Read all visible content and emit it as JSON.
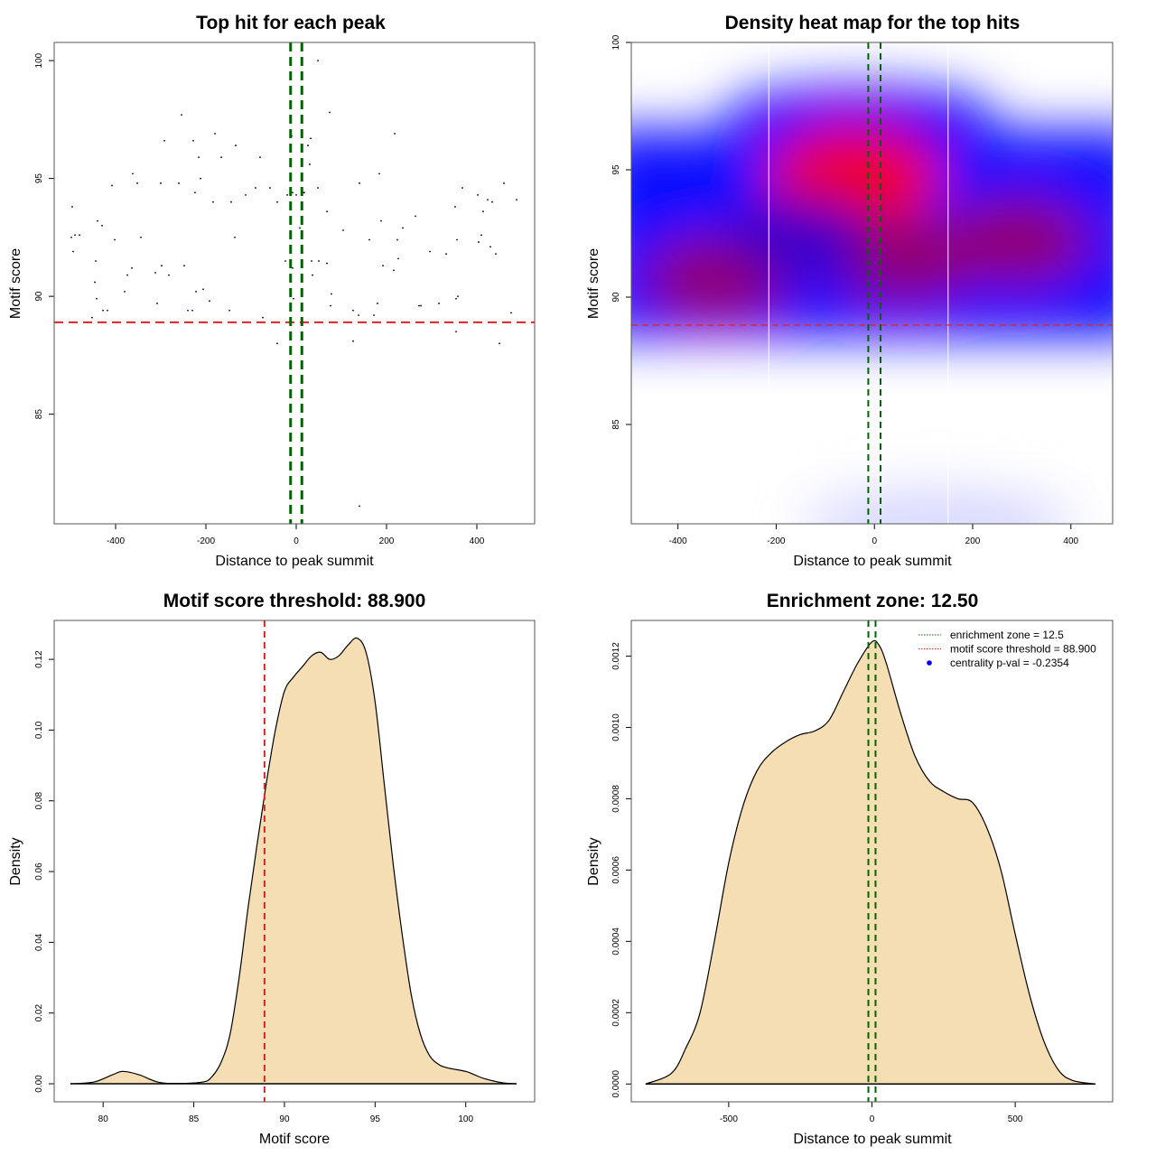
{
  "chart_data": [
    {
      "id": "scatter",
      "type": "scatter",
      "title": "Top hit for each peak",
      "xlabel": "Distance to peak summit",
      "ylabel": "Motif score",
      "xlim": [
        -536,
        528
      ],
      "ylim": [
        80.35,
        100.77
      ],
      "xticks": [
        -400,
        -200,
        0,
        200,
        400
      ],
      "yticks": [
        85,
        90,
        95,
        100
      ],
      "xtick_labels": [
        "-400",
        "-200",
        "0",
        "200",
        "400"
      ],
      "ytick_labels": [
        "85",
        "90",
        "95",
        "100"
      ],
      "hlines": [
        {
          "y": 88.9,
          "color": "#dd2222",
          "style": "dashed",
          "label": "motif score threshold"
        }
      ],
      "vlines": [
        {
          "x": -12.5,
          "color": "#006400",
          "style": "dashed"
        },
        {
          "x": 12.5,
          "color": "#006400",
          "style": "dashed"
        }
      ],
      "points": [
        [
          -496,
          93.8
        ],
        [
          -498,
          92.5
        ],
        [
          -490,
          92.6
        ],
        [
          -480,
          92.6
        ],
        [
          -494,
          91.9
        ],
        [
          -452,
          89.1
        ],
        [
          -446,
          90.6
        ],
        [
          -444,
          91.5
        ],
        [
          -442,
          89.9
        ],
        [
          -440,
          93.2
        ],
        [
          -430,
          93.0
        ],
        [
          -428,
          89.4
        ],
        [
          -418,
          89.4
        ],
        [
          -408,
          94.7
        ],
        [
          -402,
          92.4
        ],
        [
          -380,
          90.2
        ],
        [
          -374,
          90.9
        ],
        [
          -364,
          91.2
        ],
        [
          -362,
          95.2
        ],
        [
          -352,
          94.8
        ],
        [
          -344,
          92.5
        ],
        [
          -312,
          91.0
        ],
        [
          -308,
          89.7
        ],
        [
          -300,
          94.8
        ],
        [
          -298,
          91.3
        ],
        [
          -292,
          96.6
        ],
        [
          -282,
          90.9
        ],
        [
          -260,
          94.8
        ],
        [
          -254,
          97.7
        ],
        [
          -248,
          91.3
        ],
        [
          -240,
          89.4
        ],
        [
          -230,
          89.4
        ],
        [
          -228,
          96.6
        ],
        [
          -224,
          94.4
        ],
        [
          -222,
          90.2
        ],
        [
          -212,
          95.0
        ],
        [
          -216,
          95.9
        ],
        [
          -206,
          90.3
        ],
        [
          -192,
          89.8
        ],
        [
          -184,
          94.0
        ],
        [
          -180,
          96.9
        ],
        [
          -166,
          95.9
        ],
        [
          -144,
          94.0
        ],
        [
          -136,
          92.5
        ],
        [
          -148,
          89.4
        ],
        [
          -134,
          96.4
        ],
        [
          -112,
          94.3
        ],
        [
          -90,
          94.6
        ],
        [
          -80,
          95.9
        ],
        [
          -74,
          89.1
        ],
        [
          -58,
          94.6
        ],
        [
          -42,
          88.0
        ],
        [
          -42,
          94.0
        ],
        [
          -24,
          91.5
        ],
        [
          -20,
          94.3
        ],
        [
          -12,
          95.5
        ],
        [
          -10,
          96.8
        ],
        [
          -8,
          94.4
        ],
        [
          -8,
          91.2
        ],
        [
          -6,
          89.9
        ],
        [
          0,
          94.3
        ],
        [
          8,
          92.9
        ],
        [
          16,
          94.4
        ],
        [
          18,
          94.4
        ],
        [
          26,
          96.4
        ],
        [
          30,
          95.6
        ],
        [
          32,
          96.7
        ],
        [
          34,
          91.5
        ],
        [
          36,
          90.9
        ],
        [
          48,
          94.6
        ],
        [
          48,
          100.0
        ],
        [
          50,
          91.5
        ],
        [
          68,
          93.6
        ],
        [
          68,
          91.4
        ],
        [
          74,
          97.8
        ],
        [
          78,
          90.1
        ],
        [
          76,
          89.6
        ],
        [
          104,
          92.8
        ],
        [
          126,
          88.1
        ],
        [
          126,
          89.4
        ],
        [
          140,
          94.8
        ],
        [
          140,
          81.1
        ],
        [
          138,
          89.2
        ],
        [
          162,
          92.4
        ],
        [
          172,
          89.2
        ],
        [
          180,
          89.7
        ],
        [
          184,
          95.2
        ],
        [
          188,
          93.2
        ],
        [
          192,
          91.3
        ],
        [
          216,
          91.1
        ],
        [
          218,
          96.9
        ],
        [
          224,
          92.4
        ],
        [
          226,
          91.6
        ],
        [
          236,
          92.9
        ],
        [
          264,
          93.4
        ],
        [
          272,
          89.6
        ],
        [
          276,
          89.6
        ],
        [
          296,
          91.9
        ],
        [
          316,
          89.7
        ],
        [
          332,
          91.8
        ],
        [
          352,
          93.8
        ],
        [
          354,
          89.9
        ],
        [
          358,
          90.0
        ],
        [
          354,
          88.5
        ],
        [
          356,
          92.4
        ],
        [
          368,
          94.6
        ],
        [
          402,
          94.3
        ],
        [
          404,
          92.3
        ],
        [
          410,
          92.6
        ],
        [
          414,
          93.6
        ],
        [
          424,
          94.1
        ],
        [
          430,
          92.1
        ],
        [
          434,
          94.0
        ],
        [
          442,
          91.8
        ],
        [
          450,
          88.0
        ],
        [
          460,
          94.8
        ],
        [
          476,
          89.3
        ],
        [
          488,
          94.1
        ]
      ]
    },
    {
      "id": "heatmap",
      "type": "heatmap",
      "title": "Density heat map for the top hits",
      "xlabel": "Distance to peak summit",
      "ylabel": "Motif score",
      "xlim": [
        -495,
        485
      ],
      "ylim": [
        81.1,
        100
      ],
      "xticks": [
        -400,
        -200,
        0,
        200,
        400
      ],
      "yticks": [
        85,
        90,
        95,
        100
      ],
      "xtick_labels": [
        "-400",
        "-200",
        "0",
        "200",
        "400"
      ],
      "ytick_labels": [
        "85",
        "90",
        "95",
        "100"
      ],
      "colormap": [
        "#ffffff",
        "#0000ff",
        "#ff0000"
      ],
      "hlines": [
        {
          "y": 88.9,
          "color": "#dd2222",
          "style": "dashed"
        }
      ],
      "vlines": [
        {
          "x": -12.5,
          "color": "#006400",
          "style": "dashed"
        },
        {
          "x": 12.5,
          "color": "#006400",
          "style": "dashed"
        }
      ],
      "white_gridlines_x": [
        -215,
        150
      ],
      "density_peaks": [
        {
          "x": -40,
          "y": 94.8,
          "level": 1.0
        },
        {
          "x": -320,
          "y": 90.7,
          "level": 0.62
        },
        {
          "x": 60,
          "y": 91.5,
          "level": 0.55
        },
        {
          "x": 290,
          "y": 92.2,
          "level": 0.55
        },
        {
          "x": -150,
          "y": 92.4,
          "level": 0.35
        },
        {
          "x": 130,
          "y": 81.1,
          "level": 0.08
        }
      ]
    },
    {
      "id": "score-density",
      "type": "area",
      "title": "Motif score threshold: 88.900",
      "xlabel": "Motif score",
      "ylabel": "Density",
      "xlim": [
        77.3,
        103.8
      ],
      "ylim": [
        -0.0051,
        0.131
      ],
      "xticks": [
        80,
        85,
        90,
        95,
        100
      ],
      "yticks": [
        0.0,
        0.02,
        0.04,
        0.06,
        0.08,
        0.1,
        0.12
      ],
      "xtick_labels": [
        "80",
        "85",
        "90",
        "95",
        "100"
      ],
      "ytick_labels": [
        "0.00",
        "0.02",
        "0.04",
        "0.06",
        "0.08",
        "0.10",
        "0.12"
      ],
      "fill": "#f5deb3",
      "vlines": [
        {
          "x": 88.9,
          "color": "#dd2222",
          "style": "dashed"
        }
      ],
      "x": [
        78.2,
        79.5,
        80.5,
        81.1,
        82,
        83,
        84,
        85.5,
        86,
        86.5,
        87,
        87.5,
        88,
        88.5,
        89,
        89.5,
        90,
        90.5,
        91,
        91.5,
        92,
        92.5,
        93,
        93.5,
        94,
        94.5,
        95,
        95.5,
        96,
        96.5,
        97,
        97.5,
        98,
        98.5,
        99,
        100,
        100.5,
        101,
        102,
        102.8
      ],
      "y": [
        0,
        0.0005,
        0.0025,
        0.0035,
        0.0025,
        0.0005,
        0.0001,
        0.0005,
        0.002,
        0.006,
        0.014,
        0.03,
        0.05,
        0.068,
        0.085,
        0.1,
        0.111,
        0.115,
        0.118,
        0.121,
        0.122,
        0.12,
        0.121,
        0.124,
        0.126,
        0.122,
        0.108,
        0.085,
        0.062,
        0.042,
        0.025,
        0.014,
        0.008,
        0.0055,
        0.0045,
        0.0035,
        0.0025,
        0.0015,
        0.0003,
        0
      ]
    },
    {
      "id": "distance-density",
      "type": "area",
      "title": "Enrichment zone: 12.50",
      "xlabel": "Distance to peak summit",
      "ylabel": "Density",
      "xlim": [
        -840,
        840
      ],
      "ylim": [
        -5e-05,
        0.0013
      ],
      "xticks": [
        -500,
        0,
        500
      ],
      "yticks": [
        0.0,
        0.0002,
        0.0004,
        0.0006,
        0.0008,
        0.001,
        0.0012
      ],
      "xtick_labels": [
        "-500",
        "0",
        "500"
      ],
      "ytick_labels": [
        "0.0000",
        "0.0002",
        "0.0004",
        "0.0006",
        "0.0008",
        "0.0010",
        "0.0012"
      ],
      "fill": "#f5deb3",
      "vlines": [
        {
          "x": -12.5,
          "color": "#006400",
          "style": "dashed"
        },
        {
          "x": 12.5,
          "color": "#006400",
          "style": "dashed"
        }
      ],
      "x": [
        -790,
        -700,
        -650,
        -600,
        -550,
        -500,
        -450,
        -400,
        -350,
        -300,
        -250,
        -200,
        -150,
        -100,
        -50,
        0,
        25,
        50,
        100,
        150,
        200,
        250,
        300,
        350,
        400,
        450,
        500,
        550,
        600,
        650,
        700,
        780
      ],
      "y": [
        0,
        3e-05,
        0.0001,
        0.0002,
        0.0004,
        0.00062,
        0.00078,
        0.00088,
        0.00093,
        0.00096,
        0.00098,
        0.00099,
        0.00102,
        0.0011,
        0.00118,
        0.00124,
        0.00123,
        0.00118,
        0.00104,
        0.00092,
        0.00085,
        0.00082,
        0.0008,
        0.00079,
        0.00072,
        0.0006,
        0.00042,
        0.00025,
        0.00012,
        4e-05,
        1e-05,
        0
      ],
      "legend": {
        "position": "top-right",
        "items": [
          {
            "label": "enrichment zone = 12.5",
            "color": "#006400",
            "symbol": "dotted-line"
          },
          {
            "label": "motif score threshold = 88.900",
            "color": "#dd2222",
            "symbol": "dotted-line"
          },
          {
            "label": "centrality p-val = -0.2354",
            "color": "#0000ff",
            "symbol": "dot"
          }
        ]
      }
    }
  ]
}
